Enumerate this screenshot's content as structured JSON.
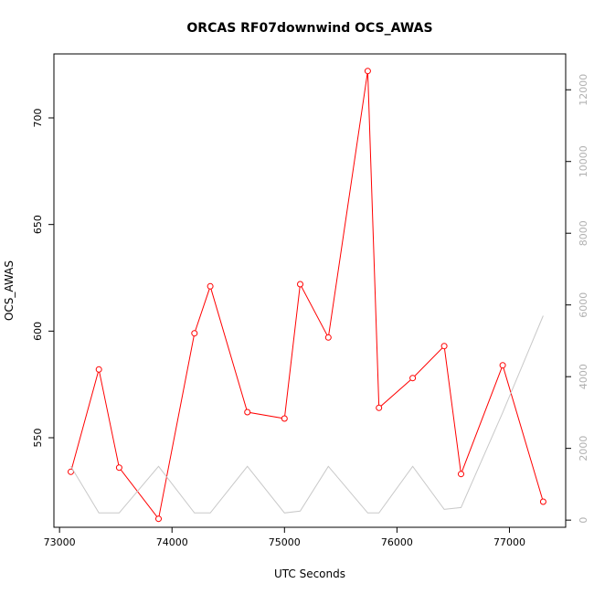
{
  "chart_data": {
    "type": "line",
    "title": "ORCAS RF07downwind OCS_AWAS",
    "xlabel": "UTC Seconds",
    "ylabel": "OCS_AWAS",
    "xlim": [
      72950,
      77500
    ],
    "ylim": [
      508,
      730
    ],
    "y2lim": [
      -200,
      13000
    ],
    "x_ticks": [
      73000,
      74000,
      75000,
      76000,
      77000
    ],
    "y_ticks": [
      550,
      600,
      650,
      700
    ],
    "y2_ticks": [
      0,
      2000,
      4000,
      6000,
      8000,
      10000,
      12000
    ],
    "series": [
      {
        "axis": "left",
        "color": "#ff0000",
        "markers": true,
        "x": [
          73100,
          73350,
          73530,
          73880,
          74200,
          74340,
          74670,
          75000,
          75140,
          75390,
          75740,
          75840,
          76140,
          76420,
          76570,
          76940,
          77300
        ],
        "values": [
          534,
          582,
          536,
          512,
          599,
          621,
          562,
          559,
          622,
          597,
          722,
          564,
          578,
          593,
          533,
          584,
          520
        ]
      },
      {
        "axis": "right",
        "color": "#c8c8c8",
        "markers": false,
        "x": [
          73100,
          73350,
          73530,
          73880,
          74200,
          74340,
          74670,
          75000,
          75140,
          75390,
          75740,
          75840,
          76140,
          76420,
          76570,
          76940,
          77300
        ],
        "values": [
          1500,
          200,
          200,
          1500,
          200,
          200,
          1500,
          200,
          250,
          1500,
          200,
          200,
          1500,
          300,
          350,
          3000,
          5700
        ]
      }
    ]
  }
}
